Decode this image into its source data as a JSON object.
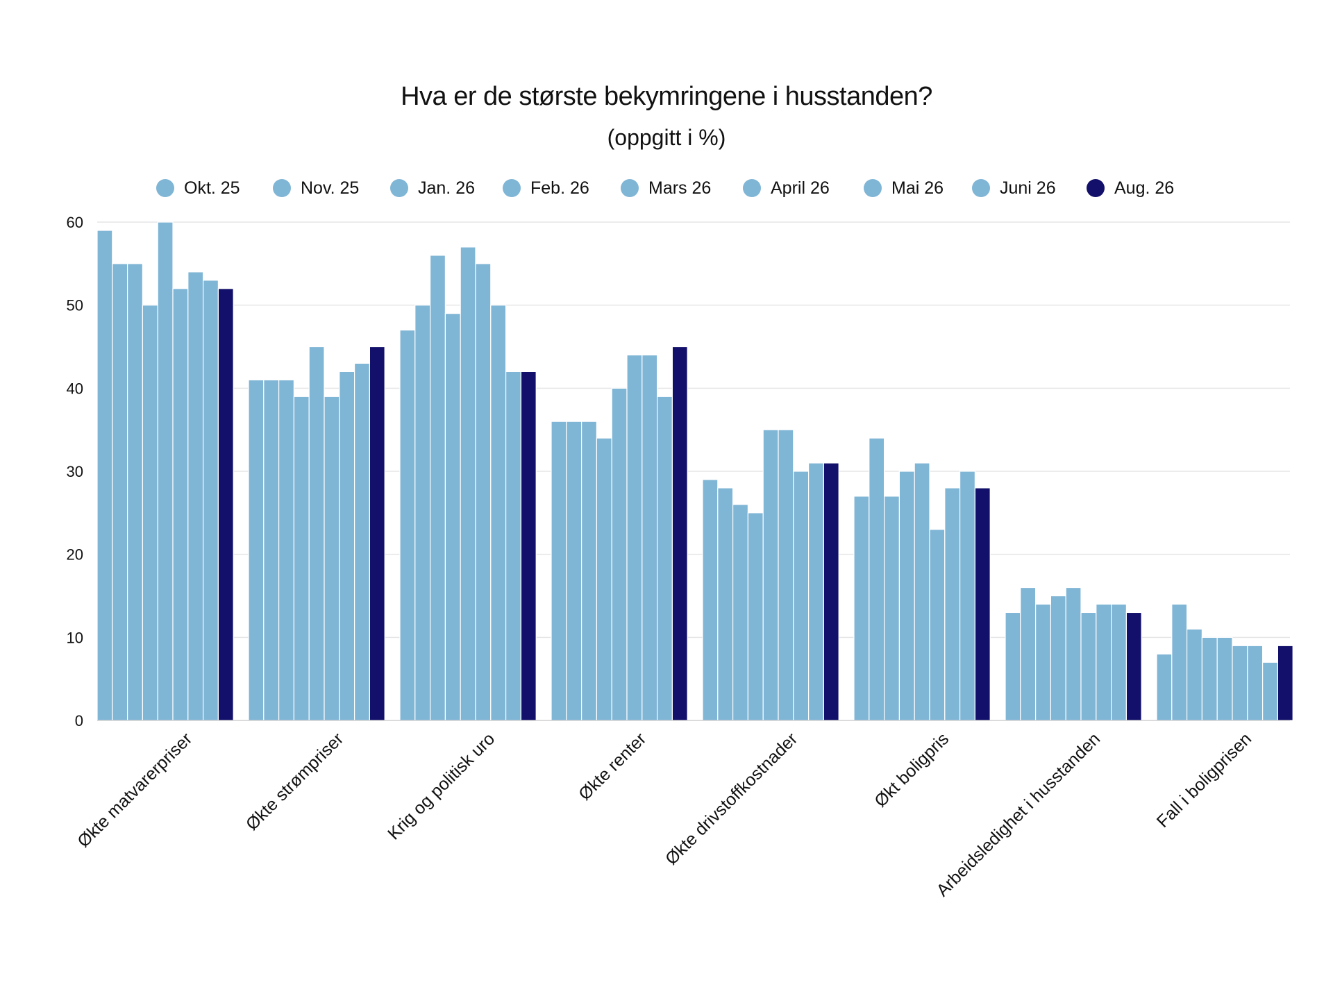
{
  "chart_data": {
    "type": "bar",
    "title": "Hva er de største bekymringene i husstanden?",
    "subtitle": "(oppgitt i %)",
    "categories": [
      "Økte matvarerpriser",
      "Økte strømpriser",
      "Krig og politisk uro",
      "Økte renter",
      "Økte drivstoffkostnader",
      "Økt boligpris",
      "Arbeidsledighet i husstanden",
      "Fall i boligprisen"
    ],
    "series": [
      {
        "name": "Okt. 25",
        "color": "#7fb5d5",
        "values": [
          59,
          41,
          47,
          36,
          29,
          27,
          13,
          8
        ]
      },
      {
        "name": "Nov. 25",
        "color": "#7fb5d5",
        "values": [
          55,
          41,
          50,
          36,
          28,
          34,
          16,
          14
        ]
      },
      {
        "name": "Jan. 26",
        "color": "#7fb5d5",
        "values": [
          55,
          41,
          56,
          36,
          26,
          27,
          14,
          11
        ]
      },
      {
        "name": "Feb. 26",
        "color": "#7fb5d5",
        "values": [
          50,
          39,
          49,
          34,
          25,
          30,
          15,
          10
        ]
      },
      {
        "name": "Mars 26",
        "color": "#7fb5d5",
        "values": [
          60,
          45,
          57,
          40,
          35,
          31,
          16,
          10
        ]
      },
      {
        "name": "April 26",
        "color": "#7fb5d5",
        "values": [
          52,
          39,
          55,
          44,
          35,
          23,
          13,
          9
        ]
      },
      {
        "name": "Mai 26",
        "color": "#7fb5d5",
        "values": [
          54,
          42,
          50,
          44,
          30,
          28,
          14,
          9
        ]
      },
      {
        "name": "Juni 26",
        "color": "#7fb5d5",
        "values": [
          53,
          43,
          42,
          39,
          31,
          30,
          14,
          7
        ]
      },
      {
        "name": "Aug. 26",
        "color": "#12106a",
        "values": [
          52,
          45,
          42,
          45,
          31,
          28,
          13,
          9
        ]
      }
    ],
    "ylim": [
      0,
      60
    ],
    "yticks": [
      0,
      10,
      20,
      30,
      40,
      50,
      60
    ],
    "grid": true,
    "legend": "top",
    "xlabel": "",
    "ylabel": ""
  }
}
